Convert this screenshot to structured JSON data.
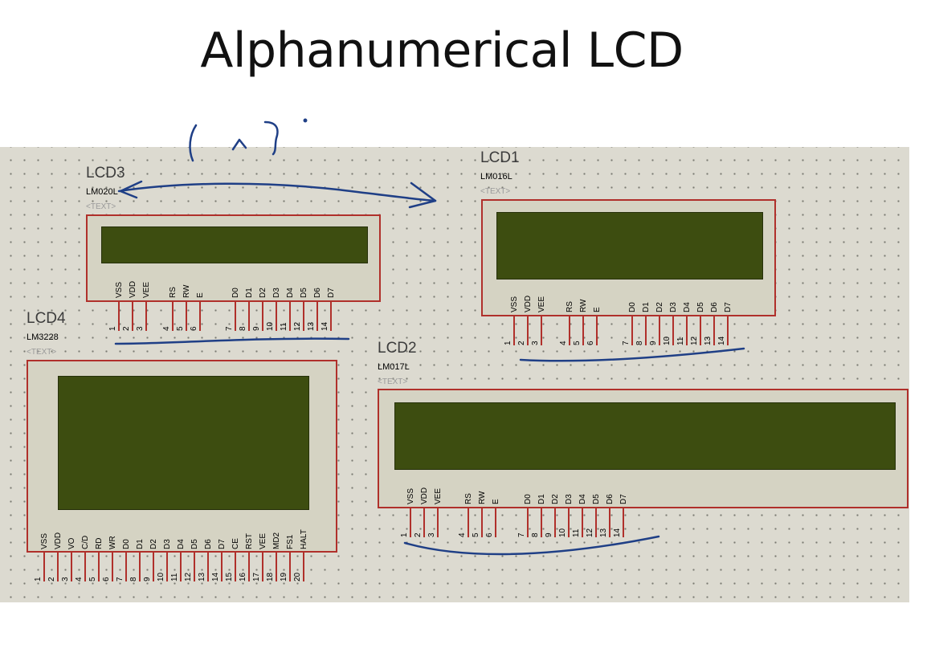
{
  "slide": {
    "title": "Alphanumerical LCD"
  },
  "canvas": {
    "grid_color": "#7a7a72",
    "background": "#dcdad0",
    "component_outline": "#b0302b",
    "screen_color": "#3d4d10",
    "ink_color": "#1f3f86"
  },
  "lcd3": {
    "ref": "LCD3",
    "model": "LM020L",
    "text": "<TEXT>",
    "pin_labels": [
      "VSS",
      "VDD",
      "VEE",
      "RS",
      "RW",
      "E",
      "D0",
      "D1",
      "D2",
      "D3",
      "D4",
      "D5",
      "D6",
      "D7"
    ],
    "pin_numbers": [
      "1",
      "2",
      "3",
      "4",
      "5",
      "6",
      "7",
      "8",
      "9",
      "10",
      "11",
      "12",
      "13",
      "14"
    ]
  },
  "lcd1": {
    "ref": "LCD1",
    "model": "LM016L",
    "text": "<TEXT>",
    "pin_labels": [
      "VSS",
      "VDD",
      "VEE",
      "RS",
      "RW",
      "E",
      "D0",
      "D1",
      "D2",
      "D3",
      "D4",
      "D5",
      "D6",
      "D7"
    ],
    "pin_numbers": [
      "1",
      "2",
      "3",
      "4",
      "5",
      "6",
      "7",
      "8",
      "9",
      "10",
      "11",
      "12",
      "13",
      "14"
    ]
  },
  "lcd4": {
    "ref": "LCD4",
    "model": "LM3228",
    "text": "<TEXT>",
    "pin_labels": [
      "VSS",
      "VDD",
      "VO",
      "C/D",
      "RD",
      "WR",
      "D0",
      "D1",
      "D2",
      "D3",
      "D4",
      "D5",
      "D6",
      "D7",
      "CE",
      "RST",
      "VEE",
      "MD2",
      "FS1",
      "HALT"
    ],
    "pin_numbers": [
      "1",
      "2",
      "3",
      "4",
      "5",
      "6",
      "7",
      "8",
      "9",
      "10",
      "11",
      "12",
      "13",
      "14",
      "15",
      "16",
      "17",
      "18",
      "19",
      "20"
    ]
  },
  "lcd2": {
    "ref": "LCD2",
    "model": "LM017L",
    "text": "<TEXT>",
    "pin_labels": [
      "VSS",
      "VDD",
      "VEE",
      "RS",
      "RW",
      "E",
      "D0",
      "D1",
      "D2",
      "D3",
      "D4",
      "D5",
      "D6",
      "D7"
    ],
    "pin_numbers": [
      "1",
      "2",
      "3",
      "4",
      "5",
      "6",
      "7",
      "8",
      "9",
      "10",
      "11",
      "12",
      "13",
      "14"
    ]
  }
}
